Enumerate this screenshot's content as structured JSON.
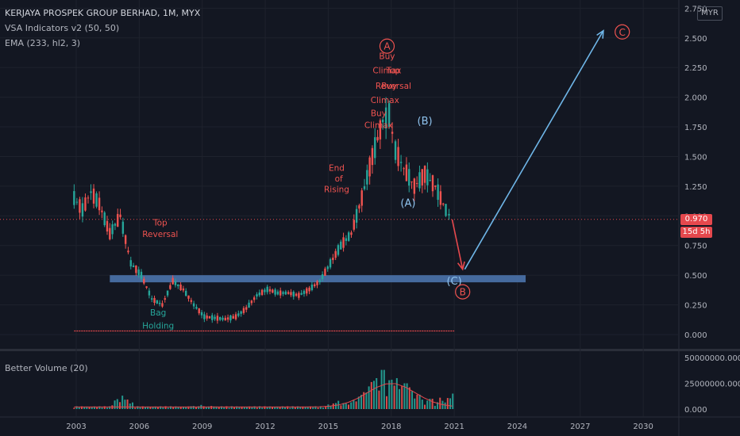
{
  "legend": {
    "symbol": "KERJAYA PROSPEK GROUP BERHAD, 1M, MYX",
    "indicator1": "VSA Indicators v2 (50, 50)",
    "indicator2": "EMA (233, hl2, 3)"
  },
  "volume_legend": "Better Volume (20)",
  "currency_button": "MYR",
  "last_price": "0.970",
  "countdown": "15d 5h",
  "colors": {
    "background": "#131722",
    "up_candle": "#26a69a",
    "down_candle": "#ef5350",
    "support_zone": "#4f79b4",
    "wave_arrow": "#6fb6e8",
    "drop_arrow": "#e5484d",
    "label_red": "#ef5350",
    "label_teal": "#26a69a",
    "label_blue": "#8fc3ee",
    "ema_line": "#e5484d"
  },
  "chart_data": [
    {
      "type": "candlestick",
      "x_ticks": [
        "2003",
        "2006",
        "2009",
        "2012",
        "2015",
        "2018",
        "2021",
        "2024",
        "2027",
        "2030"
      ],
      "y_ticks": [
        "0.000",
        "0.250",
        "0.500",
        "0.750",
        "1.000",
        "1.250",
        "1.500",
        "1.750",
        "2.000",
        "2.250",
        "2.500",
        "2.750"
      ],
      "ylim": [
        0,
        2.75
      ],
      "xlim": [
        2002.0,
        2032.0
      ],
      "price_line": 0.97,
      "support_zone": [
        0.44,
        0.5
      ],
      "series": [
        {
          "x": [
            2002.9,
            2003.3,
            2003.7,
            2004.1,
            2004.6,
            2005.1,
            2005.6,
            2006.1,
            2006.6,
            2007.1,
            2007.6,
            2008.1,
            2008.6,
            2009.1,
            2009.6,
            2010.1,
            2010.6,
            2011.1,
            2011.6,
            2012.1,
            2012.6,
            2013.1,
            2013.6,
            2014.1,
            2014.6,
            2015.1,
            2015.6,
            2016.1,
            2016.6,
            2017.1,
            2017.6,
            2017.9,
            2018.2,
            2018.6,
            2019.1,
            2019.6,
            2020.1,
            2020.6,
            2020.9
          ],
          "y": [
            1.15,
            1.05,
            1.2,
            1.1,
            0.85,
            1.0,
            0.6,
            0.5,
            0.3,
            0.25,
            0.45,
            0.38,
            0.25,
            0.15,
            0.14,
            0.13,
            0.15,
            0.22,
            0.33,
            0.38,
            0.35,
            0.35,
            0.33,
            0.38,
            0.45,
            0.6,
            0.75,
            0.85,
            1.15,
            1.5,
            1.8,
            1.85,
            1.55,
            1.4,
            1.25,
            1.35,
            1.25,
            1.05,
            0.97
          ]
        }
      ],
      "ema_line": {
        "x": [
          2002.9,
          2005,
          2007,
          2009,
          2011,
          2013,
          2015,
          2017,
          2019,
          2021
        ],
        "y": [
          0.03,
          0.03,
          0.03,
          0.03,
          0.03,
          0.03,
          0.03,
          0.03,
          0.03,
          0.03
        ]
      },
      "volume_axis": {
        "ticks": [
          "0.000",
          "25000000.000",
          "50000000.000"
        ],
        "ylim": [
          0,
          50000000
        ]
      },
      "volume_bars": {
        "x": [
          2005.2,
          2009.0,
          2015.5,
          2016.5,
          2017.0,
          2017.3,
          2017.6,
          2017.9,
          2018.3,
          2018.7,
          2019.3,
          2019.9,
          2020.4,
          2020.9
        ],
        "values": [
          13000000,
          4000000,
          8000000,
          12000000,
          22000000,
          30000000,
          38000000,
          28000000,
          30000000,
          25000000,
          14000000,
          10000000,
          8000000,
          15000000
        ]
      },
      "annotations": [
        {
          "text": "Top",
          "x": 2007.0,
          "y": 0.92,
          "color": "label_red"
        },
        {
          "text": "Reversal",
          "x": 2007.0,
          "y": 0.82,
          "color": "label_red"
        },
        {
          "text": "Bag",
          "x": 2006.9,
          "y": 0.16,
          "color": "label_teal"
        },
        {
          "text": "Holding",
          "x": 2006.9,
          "y": 0.05,
          "color": "label_teal"
        },
        {
          "text": "End",
          "x": 2015.4,
          "y": 1.38,
          "color": "label_red"
        },
        {
          "text": "of",
          "x": 2015.5,
          "y": 1.29,
          "color": "label_red"
        },
        {
          "text": "Rising",
          "x": 2015.4,
          "y": 1.2,
          "color": "label_red"
        },
        {
          "text": "Buy",
          "x": 2017.4,
          "y": 1.84,
          "color": "label_red"
        },
        {
          "text": "Climax",
          "x": 2017.4,
          "y": 1.74,
          "color": "label_red"
        },
        {
          "text": "Buy",
          "x": 2017.8,
          "y": 2.32,
          "color": "label_red"
        },
        {
          "text": "Climax",
          "x": 2017.8,
          "y": 2.2,
          "color": "label_red"
        },
        {
          "text": "Top",
          "x": 2018.1,
          "y": 2.2,
          "color": "label_red"
        },
        {
          "text": "Reversal",
          "x": 2018.1,
          "y": 2.07,
          "color": "label_red"
        },
        {
          "text": "Buy",
          "x": 2017.9,
          "y": 2.07,
          "color": "label_red"
        },
        {
          "text": "Climax",
          "x": 2017.7,
          "y": 1.95,
          "color": "label_red"
        },
        {
          "text": "(A)",
          "x": 2018.8,
          "y": 1.08,
          "color": "label_blue"
        },
        {
          "text": "(B)",
          "x": 2019.6,
          "y": 1.77,
          "color": "label_blue"
        },
        {
          "text": "(C)",
          "x": 2021.0,
          "y": 0.42,
          "color": "label_blue"
        }
      ],
      "circled_labels": [
        {
          "text": "A",
          "x": 2017.8,
          "y": 2.43
        },
        {
          "text": "B",
          "x": 2021.4,
          "y": 0.36
        },
        {
          "text": "C",
          "x": 2029.0,
          "y": 2.55
        }
      ],
      "arrows": [
        {
          "from": [
            2020.9,
            0.97
          ],
          "to": [
            2021.4,
            0.55
          ],
          "color": "drop_arrow"
        },
        {
          "from": [
            2021.5,
            0.55
          ],
          "to": [
            2028.1,
            2.56
          ],
          "color": "wave_arrow"
        }
      ]
    }
  ]
}
